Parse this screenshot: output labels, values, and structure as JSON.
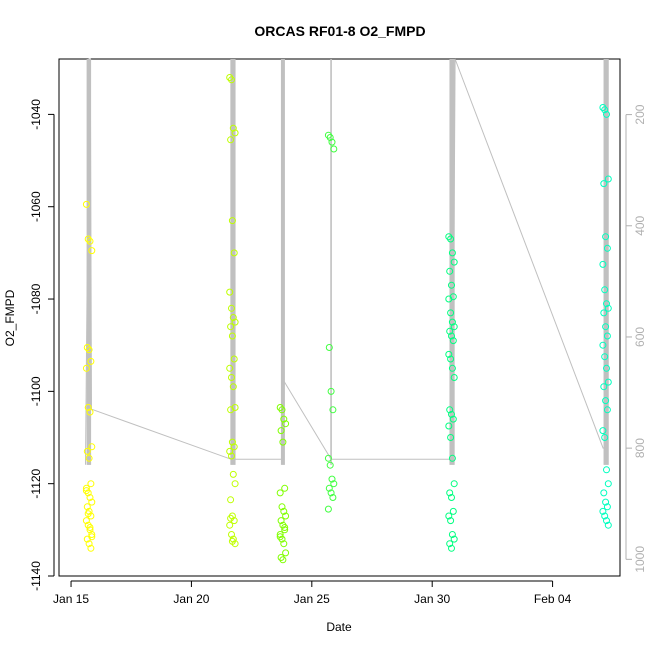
{
  "chart_data": {
    "type": "scatter",
    "title": "ORCAS RF01-8 O2_FMPD",
    "xlabel": "Date",
    "ylabel": "O2_FMPD",
    "x_ticks": [
      "Jan 15",
      "Jan 20",
      "Jan 25",
      "Jan 30",
      "Feb 04"
    ],
    "x_tick_days": [
      0,
      5,
      10,
      15,
      20
    ],
    "xlim_days": [
      -0.5,
      22.8
    ],
    "ylim": [
      -1140,
      -1028
    ],
    "y_ticks": [
      -1140,
      -1120,
      -1100,
      -1080,
      -1060,
      -1040
    ],
    "right_axis": {
      "label": "",
      "ticks": [
        200,
        400,
        600,
        800,
        1000
      ],
      "lim": [
        1030,
        100
      ],
      "color": "#b0b0b0"
    },
    "grid": false,
    "flights": [
      {
        "day": 0.75,
        "color": "#FFFF00",
        "y": [
          -1059.5,
          -1067,
          -1067.5,
          -1069.5,
          -1090.5,
          -1091,
          -1093.5,
          -1095,
          -1103.5,
          -1104.5,
          -1112,
          -1113,
          -1114.5,
          -1120,
          -1121,
          -1122,
          -1123,
          -1124,
          -1125,
          -1126,
          -1127,
          -1128,
          -1129,
          -1130,
          -1131,
          -1132,
          -1133,
          -1134,
          -1121.5,
          -1126.5,
          -1129.5,
          -1131.5
        ]
      },
      {
        "day": 6.7,
        "color": "#BFFF00",
        "y": [
          -1032,
          -1032.5,
          -1043,
          -1044,
          -1045.5,
          -1063,
          -1070,
          -1078.5,
          -1082,
          -1084,
          -1085,
          -1086,
          -1088,
          -1093,
          -1095,
          -1097,
          -1099,
          -1103.5,
          -1104,
          -1111,
          -1112,
          -1113,
          -1114,
          -1118,
          -1120,
          -1123.5,
          -1127,
          -1128,
          -1129,
          -1131,
          -1132,
          -1133,
          -1127.5,
          -1132.5
        ]
      },
      {
        "day": 8.8,
        "color": "#80FF00",
        "y": [
          -1103.5,
          -1104,
          -1106,
          -1107,
          -1108.5,
          -1111,
          -1121,
          -1122,
          -1125,
          -1126,
          -1127,
          -1128,
          -1129,
          -1130,
          -1131,
          -1132,
          -1133,
          -1135,
          -1136,
          -1136.5,
          -1129.5,
          -1131.5
        ]
      },
      {
        "day": 10.8,
        "color": "#40FF40",
        "y": [
          -1044.5,
          -1045,
          -1046,
          -1047.5,
          -1090.5,
          -1100,
          -1104,
          -1114.5,
          -1116,
          -1119,
          -1120,
          -1121,
          -1122,
          -1123,
          -1125.5
        ]
      },
      {
        "day": 15.8,
        "color": "#00FF80",
        "y": [
          -1066.5,
          -1067,
          -1070,
          -1072,
          -1074,
          -1077,
          -1079.5,
          -1080,
          -1083,
          -1085,
          -1086,
          -1087,
          -1088,
          -1089,
          -1092,
          -1093,
          -1095,
          -1097,
          -1104,
          -1105,
          -1106,
          -1107.5,
          -1110,
          -1114.5,
          -1120,
          -1122,
          -1123,
          -1126,
          -1127,
          -1128,
          -1131,
          -1132,
          -1133,
          -1134
        ]
      },
      {
        "day": 22.2,
        "color": "#00FFBF",
        "y": [
          -1038.5,
          -1039,
          -1040,
          -1054,
          -1055,
          -1066.5,
          -1069,
          -1072.5,
          -1078,
          -1081,
          -1082,
          -1083,
          -1086,
          -1088,
          -1090,
          -1092.5,
          -1095,
          -1098,
          -1099,
          -1102,
          -1104,
          -1108.5,
          -1110,
          -1117,
          -1120,
          -1122,
          -1124,
          -1125,
          -1126,
          -1127,
          -1128,
          -1129
        ]
      }
    ],
    "altitude_line": {
      "color": "#c0c0c0",
      "x_days": [
        0.6,
        0.75,
        0.8,
        0.85,
        6.65,
        6.75,
        6.9,
        8.7,
        8.8,
        8.85,
        10.8,
        10.9,
        15.7,
        15.85,
        15.95,
        22.1,
        22.2,
        22.3
      ],
      "alt": [
        830,
        100,
        100,
        730,
        820,
        820,
        820,
        820,
        820,
        680,
        820,
        820,
        820,
        820,
        100,
        800,
        800,
        100
      ]
    },
    "altitude_spikes_days": [
      0.68,
      0.72,
      0.76,
      0.8,
      6.65,
      6.7,
      6.75,
      6.8,
      8.75,
      8.8,
      8.85,
      10.8,
      15.75,
      15.8,
      15.85,
      15.9,
      22.15,
      22.2,
      22.25,
      22.3
    ]
  }
}
